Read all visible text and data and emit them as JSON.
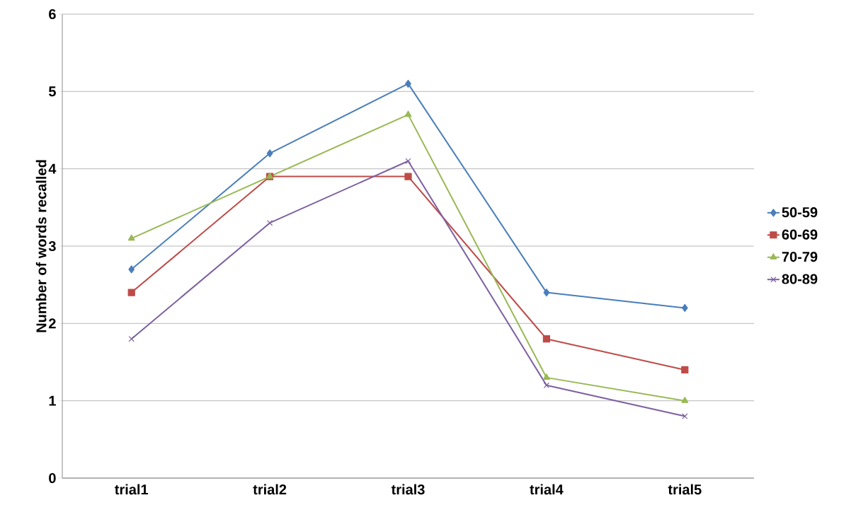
{
  "chart_data": {
    "type": "line",
    "ylabel": "Number of words recalled",
    "categories": [
      "trial1",
      "trial2",
      "trial3",
      "trial4",
      "trial5"
    ],
    "series": [
      {
        "name": "50-59",
        "color": "#4a7ebb",
        "marker": "diamond",
        "values": [
          2.7,
          4.2,
          5.1,
          2.4,
          2.2
        ]
      },
      {
        "name": "60-69",
        "color": "#be4b48",
        "marker": "square",
        "values": [
          2.4,
          3.9,
          3.9,
          1.8,
          1.4
        ]
      },
      {
        "name": "70-79",
        "color": "#98b954",
        "marker": "triangle",
        "values": [
          3.1,
          3.9,
          4.7,
          1.3,
          1.0
        ]
      },
      {
        "name": "80-89",
        "color": "#7d60a0",
        "marker": "cross",
        "values": [
          1.8,
          3.3,
          4.1,
          1.2,
          0.8
        ]
      }
    ],
    "ylim": [
      0,
      6
    ],
    "yticks": [
      0,
      1,
      2,
      3,
      4,
      5,
      6
    ],
    "grid": "y",
    "legend": "right",
    "line_style": "solid"
  }
}
